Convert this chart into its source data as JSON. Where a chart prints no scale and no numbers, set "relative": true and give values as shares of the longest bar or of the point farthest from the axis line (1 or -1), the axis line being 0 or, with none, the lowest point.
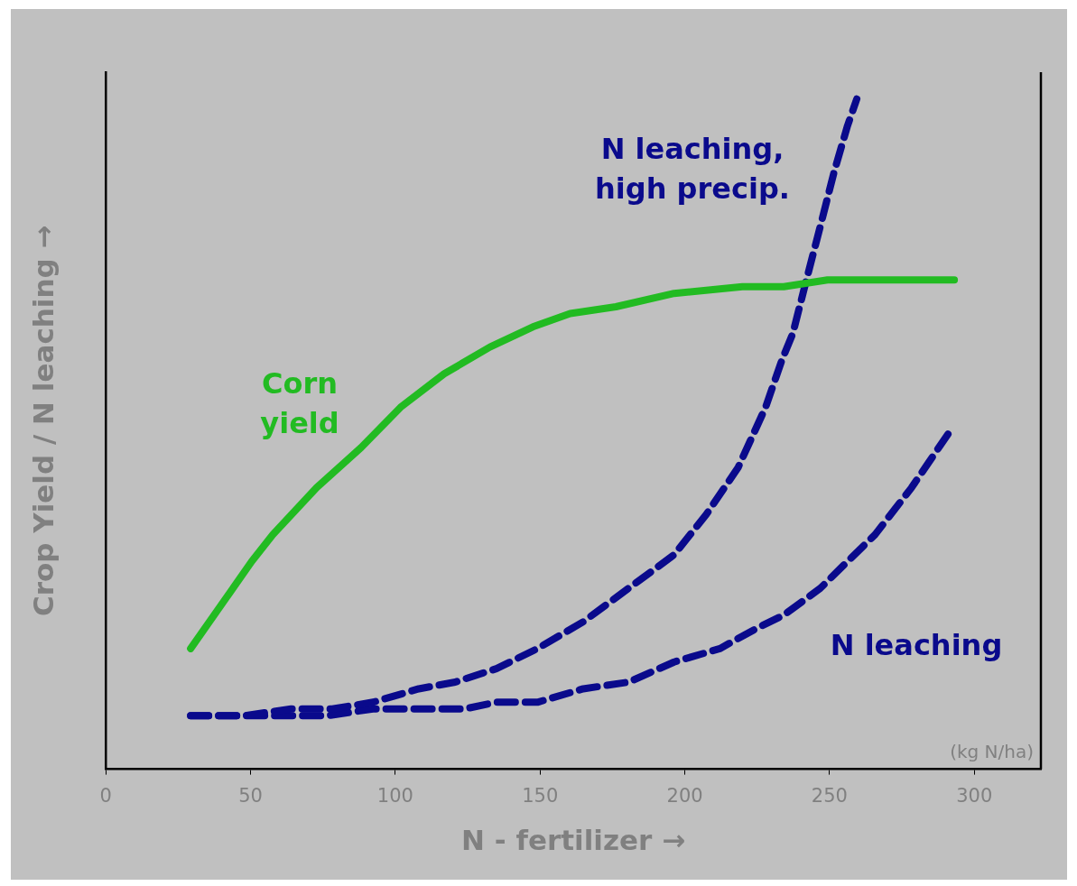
{
  "chart_data": {
    "type": "line",
    "relative": true,
    "xlabel": "N - fertilizer →",
    "ylabel": "Crop Yield / N leaching →",
    "xlim": [
      0,
      323
    ],
    "xticks": [
      0,
      50,
      100,
      150,
      200,
      250,
      300
    ],
    "grid": false,
    "legend": false,
    "marker": "none",
    "annotations": [
      "(kg N/ha)"
    ],
    "series": [
      {
        "name": "Corn yield",
        "color": "#22bb22",
        "line_style": "solid",
        "x": [
          29.3,
          50.4,
          57.7,
          72.8,
          88.2,
          101.8,
          116.9,
          132.7,
          147.5,
          160.4,
          176.2,
          196.3,
          219.9,
          234.2,
          249.3,
          264.7,
          293.1
        ],
        "values": [
          0.18,
          0.31,
          0.35,
          0.42,
          0.48,
          0.54,
          0.59,
          0.63,
          0.66,
          0.68,
          0.69,
          0.71,
          0.72,
          0.72,
          0.73,
          0.73,
          0.73
        ]
      },
      {
        "name": "N leaching, high precip.",
        "color": "#0a0a8c",
        "line_style": "dashed",
        "x": [
          29.3,
          48.2,
          64.0,
          78.2,
          92.3,
          108.1,
          120.7,
          134.9,
          149.1,
          164.9,
          180.6,
          196.3,
          207.4,
          218.4,
          227.9,
          233.5,
          237.3,
          242.0,
          246.8,
          251.5,
          256.2,
          259.4
        ],
        "values": [
          0.08,
          0.08,
          0.09,
          0.09,
          0.1,
          0.12,
          0.13,
          0.15,
          0.18,
          0.22,
          0.27,
          0.32,
          0.38,
          0.45,
          0.54,
          0.61,
          0.65,
          0.73,
          0.81,
          0.89,
          0.96,
          1.0
        ]
      },
      {
        "name": "N leaching",
        "color": "#0a0a8c",
        "line_style": "dashed",
        "x": [
          29.3,
          48.2,
          64.0,
          76.6,
          92.3,
          108.1,
          123.9,
          134.9,
          149.1,
          164.9,
          180.6,
          196.3,
          212.1,
          224.7,
          234.2,
          246.8,
          256.2,
          265.7,
          278.3,
          290.9
        ],
        "values": [
          0.08,
          0.08,
          0.08,
          0.08,
          0.09,
          0.09,
          0.09,
          0.1,
          0.1,
          0.12,
          0.13,
          0.16,
          0.18,
          0.21,
          0.23,
          0.27,
          0.31,
          0.35,
          0.42,
          0.5
        ]
      }
    ]
  }
}
